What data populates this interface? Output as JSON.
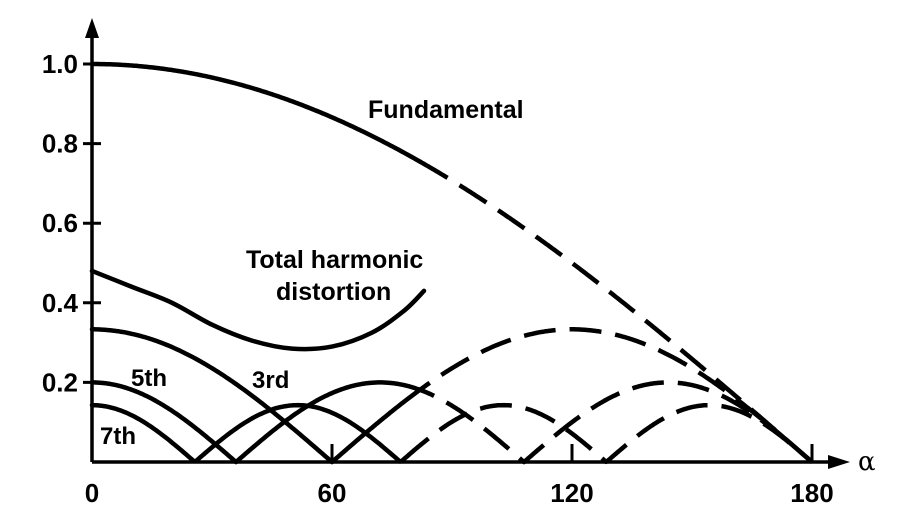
{
  "chart_data": {
    "type": "line",
    "xlabel": "α",
    "ylabel": "",
    "xlim": [
      0,
      185
    ],
    "ylim": [
      0,
      1.05
    ],
    "x_ticks": [
      "0",
      "60",
      "120",
      "180"
    ],
    "y_ticks": [
      "0.2",
      "0.4",
      "0.6",
      "0.8",
      "1.0"
    ],
    "grid": false,
    "series": [
      {
        "name": "Fundamental",
        "points": [
          [
            0,
            1.0
          ],
          [
            15,
            0.99
          ],
          [
            30,
            0.966
          ],
          [
            45,
            0.924
          ],
          [
            60,
            0.866
          ],
          [
            75,
            0.793
          ],
          [
            90,
            0.707
          ],
          [
            105,
            0.609
          ],
          [
            120,
            0.5
          ],
          [
            135,
            0.383
          ],
          [
            150,
            0.259
          ],
          [
            165,
            0.131
          ],
          [
            180,
            0.0
          ]
        ]
      },
      {
        "name": "Total harmonic distortion",
        "points": [
          [
            0,
            0.48
          ],
          [
            10,
            0.44
          ],
          [
            20,
            0.4
          ],
          [
            30,
            0.345
          ],
          [
            40,
            0.305
          ],
          [
            50,
            0.285
          ],
          [
            60,
            0.29
          ],
          [
            70,
            0.325
          ],
          [
            78,
            0.38
          ],
          [
            83,
            0.43
          ]
        ]
      },
      {
        "name": "3rd",
        "points": [
          [
            0,
            0.333
          ],
          [
            15,
            0.314
          ],
          [
            30,
            0.236
          ],
          [
            45,
            0.128
          ],
          [
            60,
            0.0
          ],
          [
            75,
            0.128
          ],
          [
            90,
            0.236
          ],
          [
            105,
            0.314
          ],
          [
            120,
            0.333
          ],
          [
            135,
            0.314
          ],
          [
            150,
            0.236
          ],
          [
            165,
            0.128
          ],
          [
            180,
            0.0
          ]
        ]
      },
      {
        "name": "5th",
        "points": [
          [
            0,
            0.2
          ],
          [
            12,
            0.162
          ],
          [
            24,
            0.062
          ],
          [
            36,
            0.062
          ],
          [
            48,
            0.162
          ],
          [
            60,
            0.2
          ],
          [
            72,
            0.2
          ],
          [
            84,
            0.162
          ],
          [
            96,
            0.062
          ],
          [
            108,
            0.0
          ],
          [
            120,
            0.062
          ],
          [
            132,
            0.162
          ],
          [
            144,
            0.2
          ],
          [
            156,
            0.162
          ],
          [
            168,
            0.062
          ],
          [
            180,
            0.0
          ]
        ]
      },
      {
        "name": "7th",
        "points": [
          [
            0,
            0.143
          ],
          [
            12.9,
            0.089
          ],
          [
            25.7,
            0.0
          ],
          [
            38.6,
            0.089
          ],
          [
            51.4,
            0.143
          ],
          [
            64.3,
            0.089
          ],
          [
            77.1,
            0.0
          ],
          [
            90,
            0.089
          ],
          [
            102.9,
            0.143
          ],
          [
            115.7,
            0.089
          ],
          [
            128.6,
            0.0
          ],
          [
            141.4,
            0.089
          ],
          [
            154.3,
            0.143
          ],
          [
            167.1,
            0.089
          ],
          [
            180,
            0.0
          ]
        ]
      }
    ],
    "annotations": [
      "Fundamental",
      "Total harmonic",
      "distortion",
      "3rd",
      "5th",
      "7th"
    ]
  }
}
